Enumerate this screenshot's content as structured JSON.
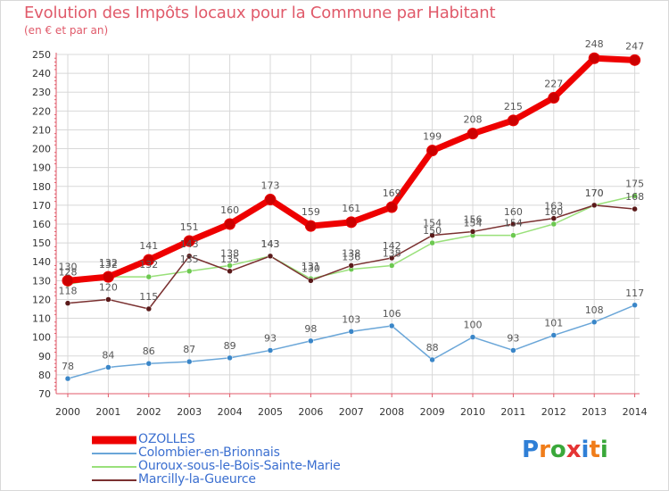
{
  "header": {
    "title": "Evolution des Impôts locaux pour la Commune par Habitant",
    "subtitle": "(en € et par an)"
  },
  "logo": {
    "text": "Proxiti",
    "letter_colors": [
      "#2f7fd6",
      "#f07d1a",
      "#3aa83a",
      "#e53434",
      "#2f7fd6",
      "#f07d1a",
      "#3aa83a"
    ]
  },
  "colors": {
    "axis": "#e05a6a",
    "grid": "#d8d8d8",
    "tick_text": "#333333",
    "label_text": "#555555"
  },
  "chart_data": {
    "type": "line",
    "title": "Evolution des Impôts locaux pour la Commune par Habitant",
    "subtitle": "(en € et par an)",
    "xlabel": "",
    "ylabel": "",
    "x": [
      "2000",
      "2001",
      "2002",
      "2003",
      "2004",
      "2005",
      "2006",
      "2007",
      "2008",
      "2009",
      "2010",
      "2011",
      "2012",
      "2013",
      "2014"
    ],
    "ylim": [
      70,
      250
    ],
    "yticks": [
      70,
      80,
      90,
      100,
      110,
      120,
      130,
      140,
      150,
      160,
      170,
      180,
      190,
      200,
      210,
      220,
      230,
      240,
      250
    ],
    "grid": true,
    "legend_position": "bottom-left",
    "series": [
      {
        "name": "OZOLLES",
        "color": "#ee0000",
        "dot_color": "#cc0000",
        "width": 7,
        "dot_r": 6,
        "values": [
          130,
          132,
          141,
          151,
          160,
          173,
          159,
          161,
          169,
          199,
          208,
          215,
          227,
          248,
          247
        ],
        "labels": [
          "130",
          "132",
          "141",
          "151",
          "160",
          "173",
          "159",
          "161",
          "169",
          "199",
          "208",
          "215",
          "227",
          "248",
          "247"
        ]
      },
      {
        "name": "Colombier-en-Brionnais",
        "color": "#6aa6d8",
        "dot_color": "#3a86c8",
        "width": 1.5,
        "dot_r": 3,
        "values": [
          78,
          84,
          86,
          87,
          89,
          93,
          98,
          103,
          106,
          88,
          100,
          93,
          101,
          108,
          117
        ],
        "labels": [
          "78",
          "84",
          "86",
          "87",
          "89",
          "93",
          "98",
          "103",
          "106",
          "88",
          "100",
          "93",
          "101",
          "108",
          "117"
        ]
      },
      {
        "name": "Ouroux-sous-le-Bois-Sainte-Marie",
        "color": "#99e07a",
        "dot_color": "#6cc850",
        "width": 1.5,
        "dot_r": 3,
        "values": [
          128,
          132,
          132,
          135,
          138,
          143,
          131,
          136,
          138,
          150,
          154,
          154,
          160,
          170,
          175
        ],
        "labels": [
          "128",
          "132",
          "132",
          "135",
          "138",
          "143",
          "131",
          "136",
          "138",
          "150",
          "154",
          "154",
          "160",
          "170",
          "175"
        ]
      },
      {
        "name": "Marcilly-la-Gueurce",
        "color": "#7a3030",
        "dot_color": "#5a1a1a",
        "width": 1.5,
        "dot_r": 3,
        "values": [
          118,
          120,
          115,
          143,
          135,
          143,
          130,
          138,
          142,
          154,
          156,
          160,
          163,
          170,
          168
        ],
        "labels": [
          "118",
          "120",
          "115",
          "143",
          "135",
          "143",
          "130",
          "138",
          "142",
          "154",
          "156",
          "160",
          "163",
          "170",
          "168"
        ]
      }
    ]
  }
}
